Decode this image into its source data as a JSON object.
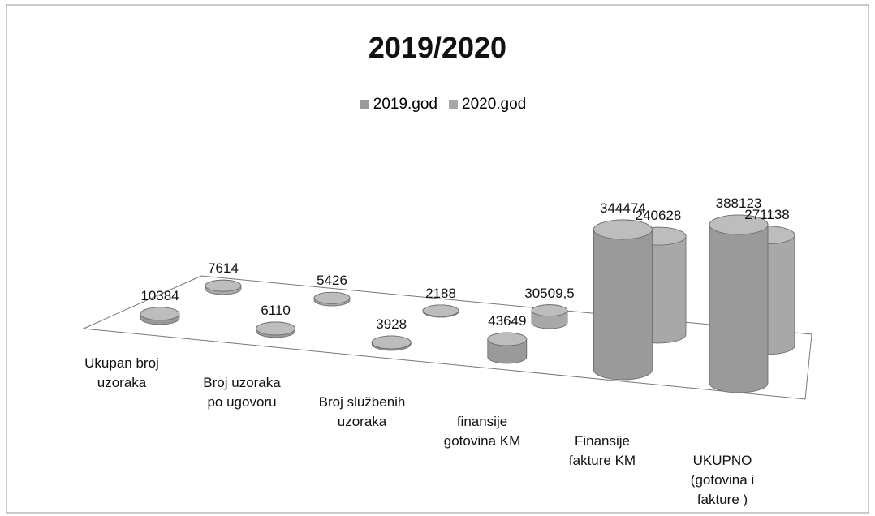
{
  "chart_data": {
    "type": "bar3d",
    "title": "2019/2020",
    "categories": [
      "Ukupan broj uzoraka",
      "Broj uzoraka po ugovoru",
      "Broj službenih uzoraka",
      "finansije gotovina KM",
      "Finansije fakture KM",
      "UKUPNO (gotovina i fakture )"
    ],
    "series": [
      {
        "name": "2019.god",
        "color": "#9a9a9a",
        "values": [
          10384,
          6110,
          3928,
          43649,
          344474,
          388123
        ]
      },
      {
        "name": "2020.god",
        "color": "#a8a8a8",
        "values": [
          7614,
          5426,
          2188,
          30509.5,
          240628,
          271138
        ],
        "value_labels": [
          "7614",
          "5426",
          "2188",
          "30509,5",
          "240628",
          "271138"
        ]
      }
    ],
    "legend": "top"
  }
}
